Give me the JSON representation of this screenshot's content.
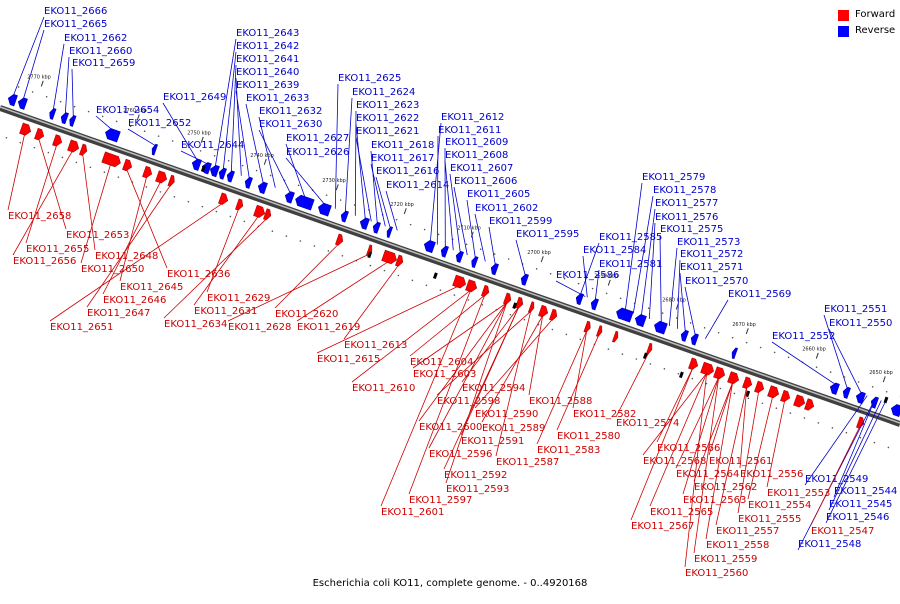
{
  "caption": "Escherichia coli KO11, complete genome. - 0..4920168",
  "legend": {
    "forward": {
      "label": "Forward",
      "color": "#ff0000"
    },
    "reverse": {
      "label": "Reverse",
      "color": "#0000ff"
    }
  },
  "backbone_color": "#707070",
  "ticks": [
    "2770 kbp",
    "2760 kbp",
    "2750 kbp",
    "2740 kbp",
    "2730 kbp",
    "2720 kbp",
    "2710 kbp",
    "2700 kbp",
    "2690 kbp",
    "2680 kbp",
    "2670 kbp",
    "2660 kbp",
    "2650 kbp"
  ],
  "reverse_genes": [
    "EKO11_2666",
    "EKO11_2665",
    "EKO11_2662",
    "EKO11_2660",
    "EKO11_2659",
    "EKO11_2654",
    "EKO11_2652",
    "EKO11_2649",
    "EKO11_2644",
    "EKO11_2643",
    "EKO11_2642",
    "EKO11_2641",
    "EKO11_2640",
    "EKO11_2639",
    "EKO11_2633",
    "EKO11_2632",
    "EKO11_2630",
    "EKO11_2627",
    "EKO11_2626",
    "EKO11_2625",
    "EKO11_2624",
    "EKO11_2623",
    "EKO11_2622",
    "EKO11_2621",
    "EKO11_2618",
    "EKO11_2617",
    "EKO11_2616",
    "EKO11_2614",
    "EKO11_2612",
    "EKO11_2611",
    "EKO11_2609",
    "EKO11_2608",
    "EKO11_2607",
    "EKO11_2606",
    "EKO11_2605",
    "EKO11_2602",
    "EKO11_2599",
    "EKO11_2595",
    "EKO11_2585",
    "EKO11_2584",
    "EKO11_2581",
    "EKO11_2586",
    "EKO11_2579",
    "EKO11_2578",
    "EKO11_2577",
    "EKO11_2576",
    "EKO11_2575",
    "EKO11_2573",
    "EKO11_2572",
    "EKO11_2571",
    "EKO11_2570",
    "EKO11_2569",
    "EKO11_2551",
    "EKO11_2550",
    "EKO11_2552",
    "EKO11_2549",
    "EKO11_2544",
    "EKO11_2545",
    "EKO11_2546",
    "EKO11_2548"
  ],
  "forward_genes": [
    "EKO11_2658",
    "EKO11_2653",
    "EKO11_2655",
    "EKO11_2656",
    "EKO11_2648",
    "EKO11_2650",
    "EKO11_2636",
    "EKO11_2645",
    "EKO11_2646",
    "EKO11_2647",
    "EKO11_2651",
    "EKO11_2629",
    "EKO11_2631",
    "EKO11_2634",
    "EKO11_2620",
    "EKO11_2628",
    "EKO11_2619",
    "EKO11_2613",
    "EKO11_2615",
    "EKO11_2610",
    "EKO11_2604",
    "EKO11_2603",
    "EKO11_2594",
    "EKO11_2598",
    "EKO11_2588",
    "EKO11_2590",
    "EKO11_2582",
    "EKO11_2589",
    "EKO11_2600",
    "EKO11_2591",
    "EKO11_2580",
    "EKO11_2583",
    "EKO11_2596",
    "EKO11_2587",
    "EKO11_2592",
    "EKO11_2593",
    "EKO11_2597",
    "EKO11_2601",
    "EKO11_2574",
    "EKO11_2566",
    "EKO11_2568",
    "EKO11_2561",
    "EKO11_2564",
    "EKO11_2556",
    "EKO11_2562",
    "EKO11_2553",
    "EKO11_2563",
    "EKO11_2554",
    "EKO11_2565",
    "EKO11_2555",
    "EKO11_2567",
    "EKO11_2557",
    "EKO11_2547",
    "EKO11_2558",
    "EKO11_2559",
    "EKO11_2560"
  ]
}
